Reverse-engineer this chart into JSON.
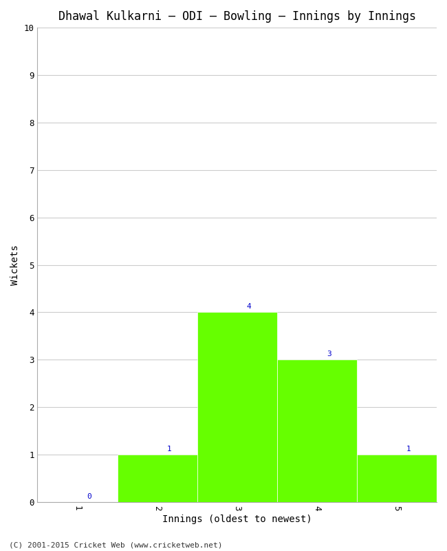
{
  "title": "Dhawal Kulkarni – ODI – Bowling – Innings by Innings",
  "xlabel": "Innings (oldest to newest)",
  "ylabel": "Wickets",
  "categories": [
    1,
    2,
    3,
    4,
    5
  ],
  "values": [
    0,
    1,
    4,
    3,
    1
  ],
  "bar_color": "#66ff00",
  "annotation_color": "#0000cc",
  "ylim": [
    0,
    10
  ],
  "yticks": [
    0,
    1,
    2,
    3,
    4,
    5,
    6,
    7,
    8,
    9,
    10
  ],
  "xticks": [
    1,
    2,
    3,
    4,
    5
  ],
  "background_color": "#ffffff",
  "grid_color": "#cccccc",
  "title_fontsize": 12,
  "axis_label_fontsize": 10,
  "tick_fontsize": 9,
  "annotation_fontsize": 8,
  "footer_text": "(C) 2001-2015 Cricket Web (www.cricketweb.net)",
  "footer_fontsize": 8,
  "bar_width": 1.0
}
